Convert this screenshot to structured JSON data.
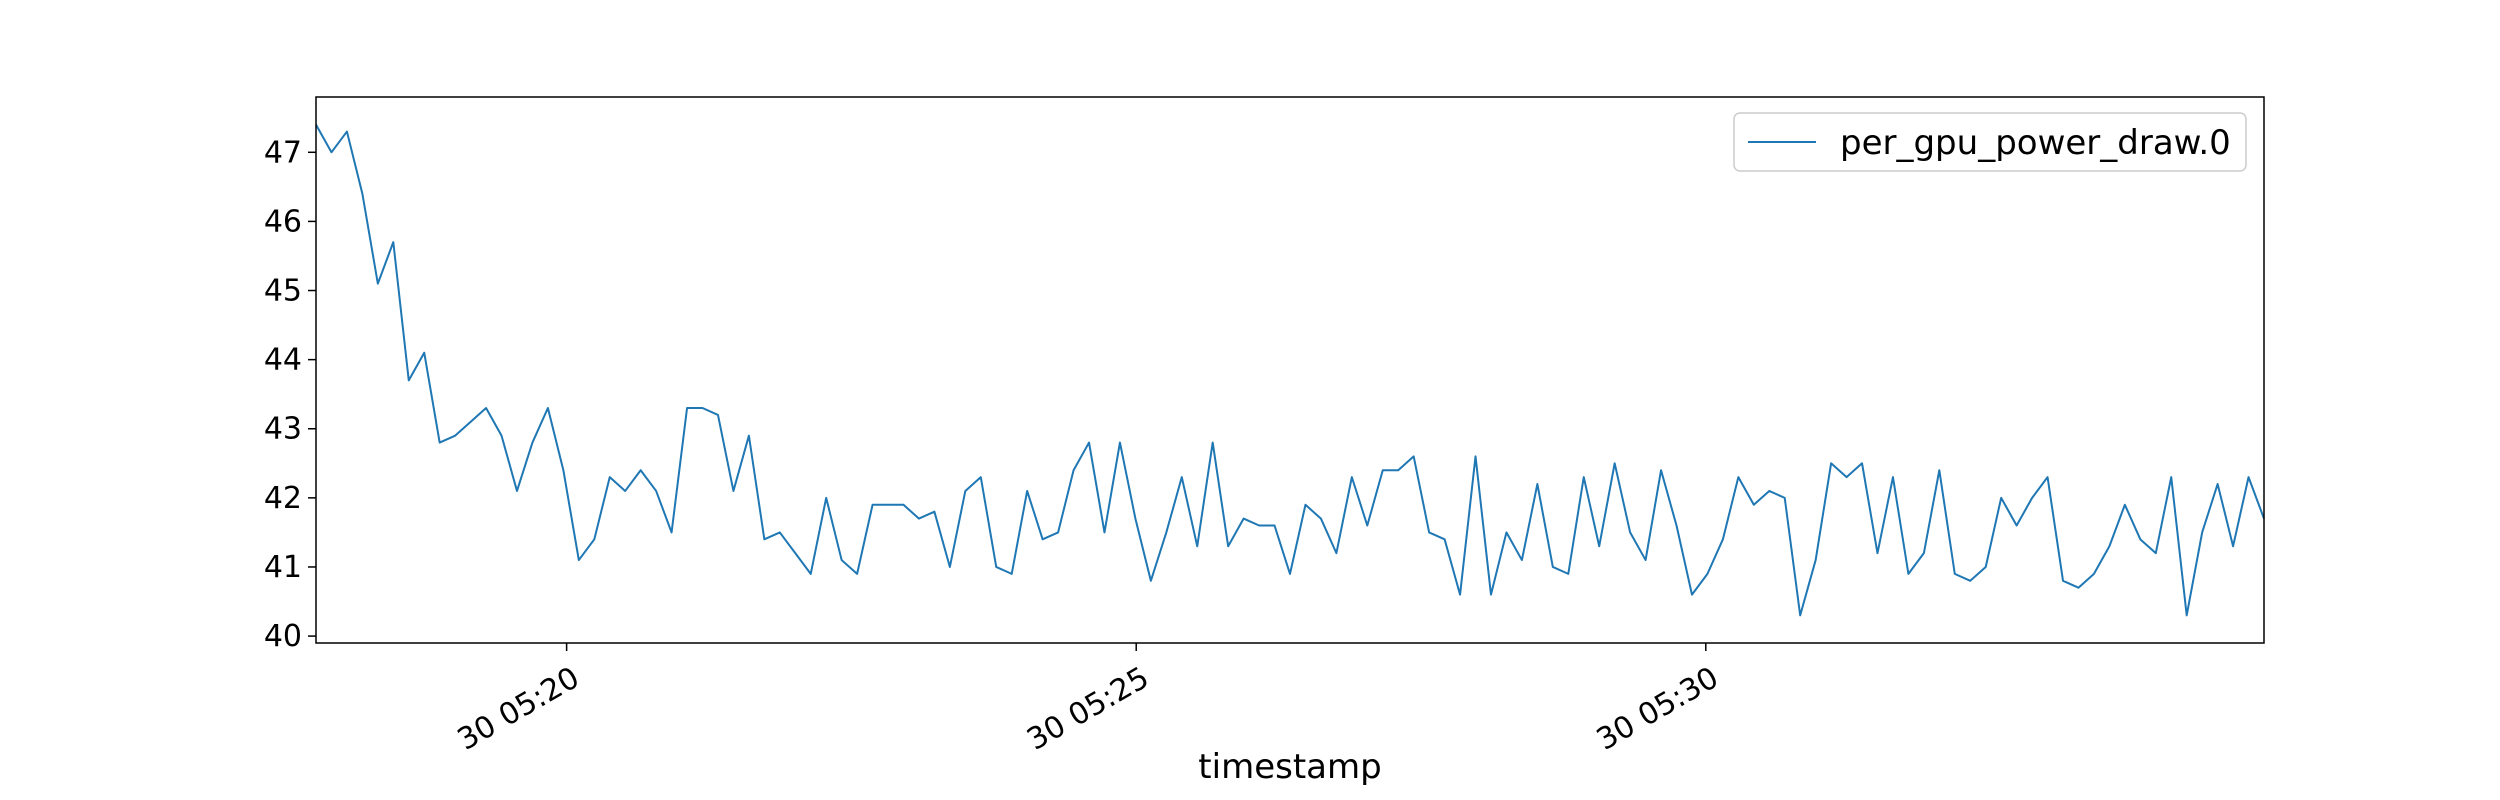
{
  "chart_data": {
    "type": "line",
    "title": "",
    "xlabel": "timestamp",
    "ylabel": "",
    "x_tick_labels": [
      "30 05:20",
      "30 05:25",
      "30 05:30"
    ],
    "x_ticks_minutes": [
      20,
      25,
      30
    ],
    "x_range_minutes": [
      17.8,
      34.9
    ],
    "ylim": [
      39.9,
      47.8
    ],
    "y_ticks": [
      40,
      41,
      42,
      43,
      44,
      45,
      46,
      47
    ],
    "grid": false,
    "legend_position": "top-right",
    "series": [
      {
        "name": "per_gpu_power_draw.0",
        "color": "#1f77b4",
        "x_minutes_start": 17.8,
        "x_minutes_end": 34.9,
        "values": [
          47.4,
          47.0,
          47.3,
          46.4,
          45.1,
          45.7,
          43.7,
          44.1,
          42.8,
          42.9,
          43.1,
          43.3,
          42.9,
          42.1,
          42.8,
          43.3,
          42.4,
          41.1,
          41.4,
          42.3,
          42.1,
          42.4,
          42.1,
          41.5,
          43.3,
          43.3,
          43.2,
          42.1,
          42.9,
          41.4,
          41.5,
          41.2,
          40.9,
          42.0,
          41.1,
          40.9,
          41.9,
          41.9,
          41.9,
          41.7,
          41.8,
          41.0,
          42.1,
          42.3,
          41.0,
          40.9,
          42.1,
          41.4,
          41.5,
          42.4,
          42.8,
          41.5,
          42.8,
          41.7,
          40.8,
          41.5,
          42.3,
          41.3,
          42.8,
          41.3,
          41.7,
          41.6,
          41.6,
          40.9,
          41.9,
          41.7,
          41.2,
          42.3,
          41.6,
          42.4,
          42.4,
          42.6,
          41.5,
          41.4,
          40.6,
          42.6,
          40.6,
          41.5,
          41.1,
          42.2,
          41.0,
          40.9,
          42.3,
          41.3,
          42.5,
          41.5,
          41.1,
          42.4,
          41.6,
          40.6,
          40.9,
          41.4,
          42.3,
          41.9,
          42.1,
          42.0,
          40.3,
          41.1,
          42.5,
          42.3,
          42.5,
          41.2,
          42.3,
          40.9,
          41.2,
          42.4,
          40.9,
          40.8,
          41.0,
          42.0,
          41.6,
          42.0,
          42.3,
          40.8,
          40.7,
          40.9,
          41.3,
          41.9,
          41.4,
          41.2,
          42.3,
          40.3,
          41.5,
          42.2,
          41.3,
          42.3,
          41.7
        ]
      }
    ]
  }
}
